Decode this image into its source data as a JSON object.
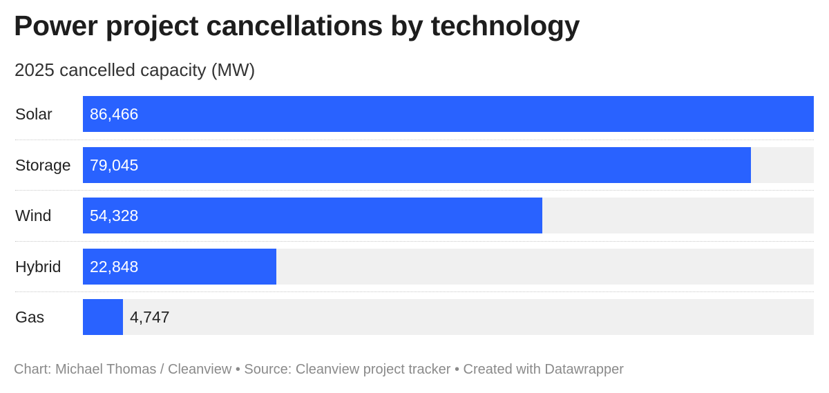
{
  "header": {
    "title": "Power project cancellations by technology",
    "subtitle": "2025 cancelled capacity (MW)"
  },
  "footer": {
    "text": "Chart: Michael Thomas / Cleanview • Source: Cleanview project tracker • Created with Datawrapper"
  },
  "colors": {
    "bar": "#2962ff",
    "track": "#f0f0f0"
  },
  "chart_data": {
    "type": "bar",
    "orientation": "horizontal",
    "title": "Power project cancellations by technology",
    "subtitle": "2025 cancelled capacity (MW)",
    "categories": [
      "Solar",
      "Storage",
      "Wind",
      "Hybrid",
      "Gas"
    ],
    "values": [
      86466,
      79045,
      54328,
      22848,
      4747
    ],
    "value_labels": [
      "86,466",
      "79,045",
      "54,328",
      "22,848",
      "4,747"
    ],
    "xlim": [
      0,
      86466
    ],
    "grid": false,
    "legend": "none"
  }
}
